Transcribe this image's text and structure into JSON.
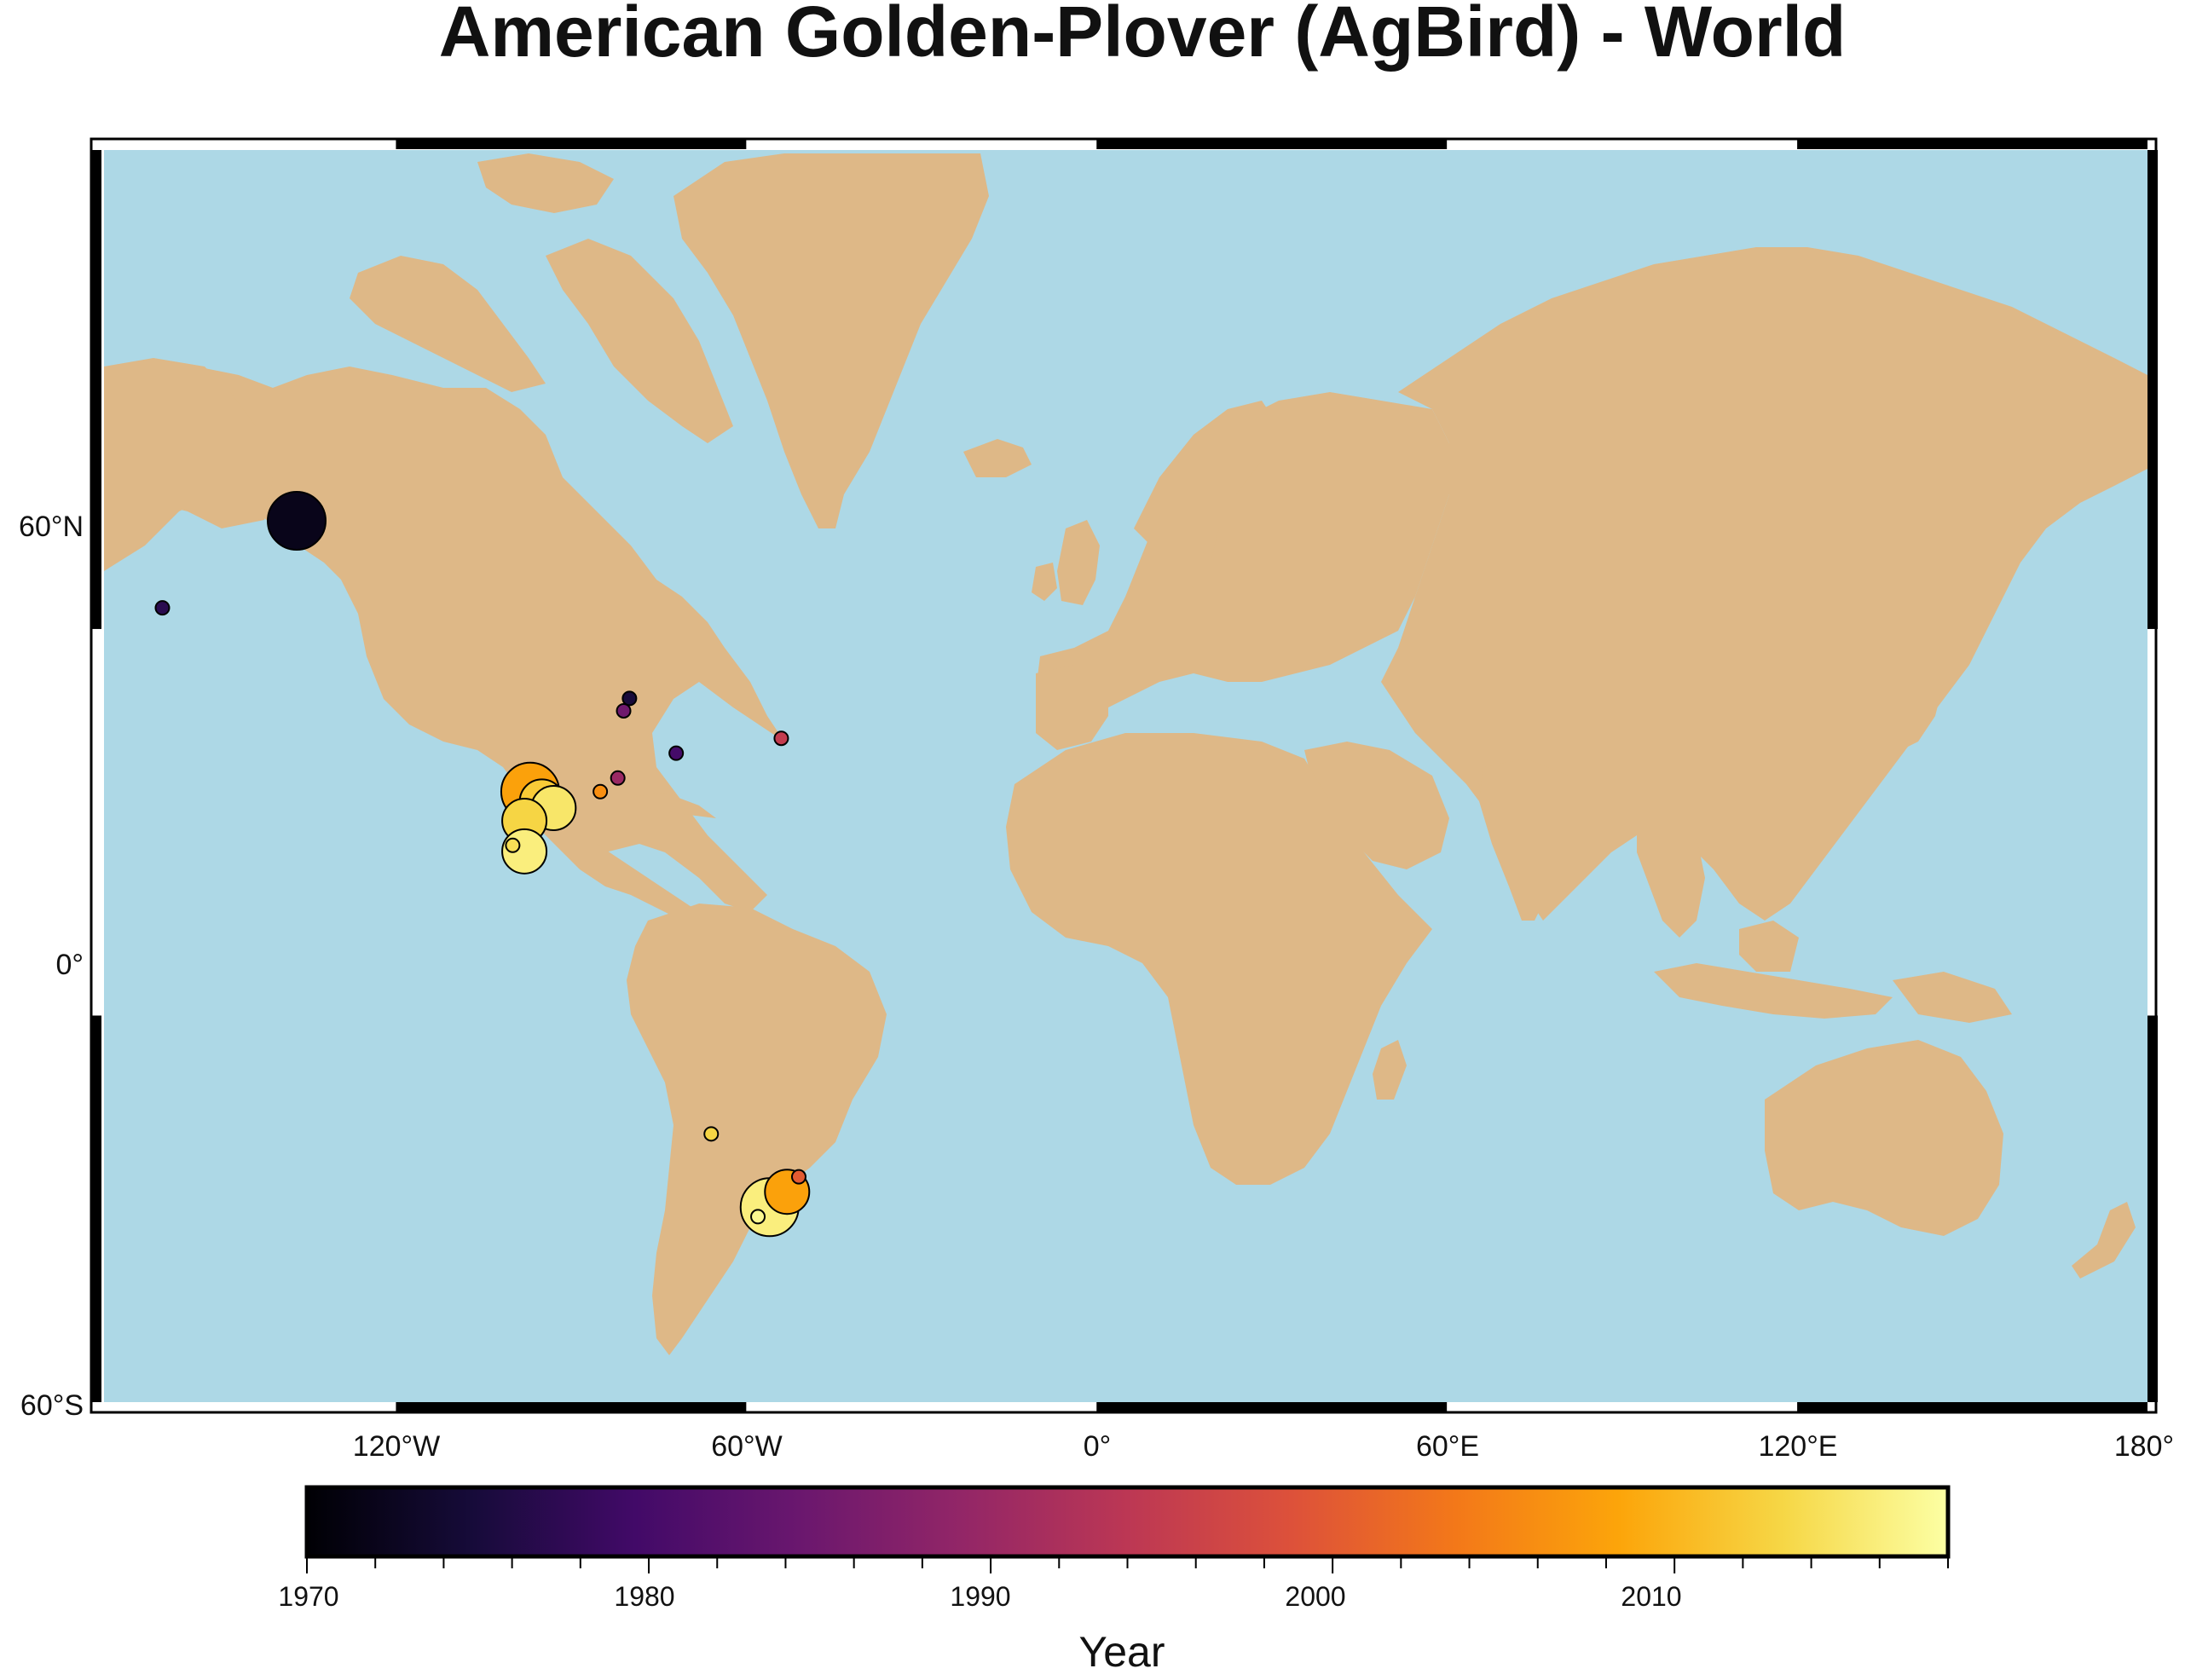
{
  "title": "American Golden-Plover (AgBird) - World",
  "colors": {
    "ocean": "#add8e6",
    "land": "#deb887",
    "frame": "#000000"
  },
  "chart_data": {
    "type": "scatter",
    "projection": "mercator",
    "lon_range": [
      -170,
      180
    ],
    "lat_range": [
      -60,
      84
    ],
    "grid": false,
    "x_ticks": [
      "120°W",
      "60°W",
      "0°",
      "60°E",
      "120°E",
      "180°"
    ],
    "x_tick_values": [
      -120,
      -60,
      0,
      60,
      120,
      180
    ],
    "y_ticks": [
      "60°N",
      "0°",
      "60°S"
    ],
    "y_tick_values": [
      60,
      0,
      -60
    ],
    "colorbar": {
      "label": "Year",
      "colormap": "inferno",
      "range": [
        1970,
        2018
      ],
      "tick_labels": [
        "1970",
        "1980",
        "1990",
        "2000",
        "2010"
      ],
      "tick_values": [
        1970,
        1980,
        1990,
        2000,
        2010
      ]
    },
    "points": [
      {
        "lon": -137,
        "lat": 69.0,
        "year": 1972,
        "size": 3
      },
      {
        "lon": -97,
        "lat": 40.0,
        "year": 2008,
        "size": 3
      },
      {
        "lon": -95,
        "lat": 38.5,
        "year": 2012,
        "size": 2
      },
      {
        "lon": -93,
        "lat": 37.5,
        "year": 2015,
        "size": 2
      },
      {
        "lon": -98,
        "lat": 35.5,
        "year": 2013,
        "size": 2
      },
      {
        "lon": -98,
        "lat": 30.5,
        "year": 2016,
        "size": 2
      },
      {
        "lon": -100,
        "lat": 31.5,
        "year": 2014,
        "size": 1
      },
      {
        "lon": -85,
        "lat": 40.0,
        "year": 2006,
        "size": 1
      },
      {
        "lon": -82,
        "lat": 42.0,
        "year": 1990,
        "size": 1
      },
      {
        "lon": -81,
        "lat": 51.0,
        "year": 1985,
        "size": 1
      },
      {
        "lon": -80,
        "lat": 52.5,
        "year": 1975,
        "size": 1
      },
      {
        "lon": -72,
        "lat": 45.5,
        "year": 1980,
        "size": 1
      },
      {
        "lon": -54,
        "lat": 47.5,
        "year": 1995,
        "size": 1
      },
      {
        "lon": -160,
        "lat": 62.0,
        "year": 1977,
        "size": 1
      },
      {
        "lon": -56,
        "lat": -35.0,
        "year": 2016,
        "size": 3
      },
      {
        "lon": -53,
        "lat": -32.5,
        "year": 2008,
        "size": 2
      },
      {
        "lon": -51,
        "lat": -30.0,
        "year": 2000,
        "size": 1
      },
      {
        "lon": -66,
        "lat": -22.5,
        "year": 2013,
        "size": 1
      },
      {
        "lon": -58,
        "lat": -36.5,
        "year": 2017,
        "size": 1
      }
    ]
  }
}
